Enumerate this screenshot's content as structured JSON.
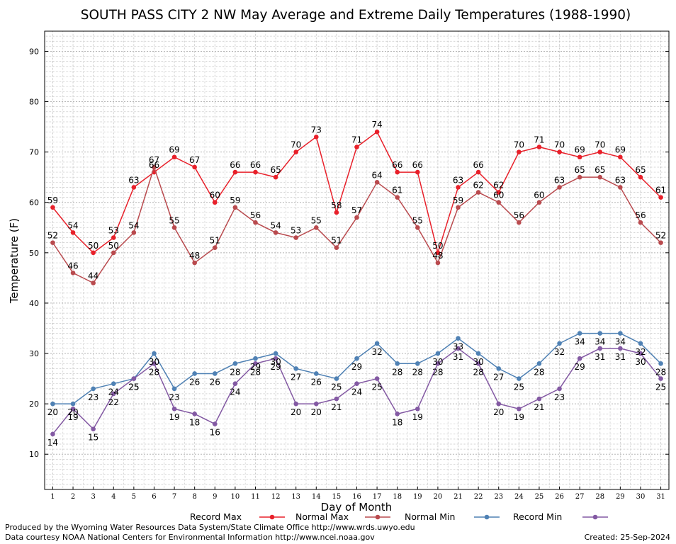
{
  "chart_data": {
    "type": "line",
    "title": "SOUTH PASS CITY 2 NW May Average and Extreme Daily Temperatures (1988-1990)",
    "xlabel": "Day of Month",
    "ylabel": "Temperature (F)",
    "x": [
      1,
      2,
      3,
      4,
      5,
      6,
      7,
      8,
      9,
      10,
      11,
      12,
      13,
      14,
      15,
      16,
      17,
      18,
      19,
      20,
      21,
      22,
      23,
      24,
      25,
      26,
      27,
      28,
      29,
      30,
      31
    ],
    "xlim": [
      0.6,
      31.4
    ],
    "ylim": [
      3,
      94
    ],
    "yticks": [
      10,
      20,
      30,
      40,
      50,
      60,
      70,
      80,
      90
    ],
    "grid": true,
    "legend_position": "bottom",
    "series": [
      {
        "name": "Record Max",
        "color": "#e8202a",
        "values": [
          59,
          54,
          50,
          53,
          63,
          66,
          69,
          67,
          60,
          66,
          66,
          65,
          70,
          73,
          58,
          71,
          74,
          66,
          66,
          50,
          63,
          66,
          62,
          70,
          71,
          70,
          69,
          70,
          69,
          65,
          61
        ]
      },
      {
        "name": "Normal Max",
        "color": "#b94a4e",
        "values": [
          52,
          46,
          44,
          50,
          54,
          67,
          55,
          48,
          51,
          59,
          56,
          54,
          53,
          55,
          51,
          57,
          64,
          61,
          55,
          48,
          59,
          62,
          60,
          56,
          60,
          63,
          65,
          65,
          63,
          56,
          52
        ]
      },
      {
        "name": "Normal Min",
        "color": "#4f81b4",
        "values": [
          20,
          20,
          23,
          24,
          25,
          30,
          23,
          26,
          26,
          28,
          29,
          30,
          27,
          26,
          25,
          29,
          32,
          28,
          28,
          30,
          33,
          30,
          27,
          25,
          28,
          32,
          34,
          34,
          34,
          32,
          28
        ]
      },
      {
        "name": "Record Min",
        "color": "#8359a3",
        "values": [
          14,
          19,
          15,
          22,
          25,
          28,
          19,
          18,
          16,
          24,
          28,
          29,
          20,
          20,
          21,
          24,
          25,
          18,
          19,
          28,
          31,
          28,
          20,
          19,
          21,
          23,
          29,
          31,
          31,
          30,
          25
        ]
      }
    ]
  },
  "footer": {
    "produced_by": "Produced by the Wyoming Water Resources Data System/State Climate Office http://www.wrds.uwyo.edu",
    "courtesy": "Data courtesy NOAA National Centers for Environmental Information http://www.ncei.noaa.gov",
    "created": "Created:  25-Sep-2024"
  }
}
